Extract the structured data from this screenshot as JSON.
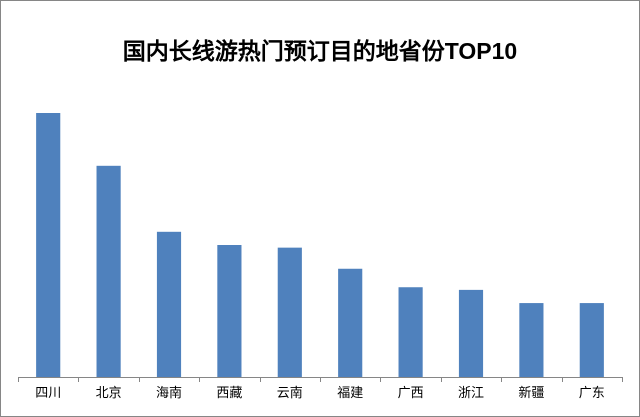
{
  "chart_data": {
    "type": "bar",
    "title": "国内长线游热门预订目的地省份TOP10",
    "xlabel": "",
    "ylabel": "",
    "categories": [
      "四川",
      "北京",
      "海南",
      "西藏",
      "云南",
      "福建",
      "广西",
      "浙江",
      "新疆",
      "广东"
    ],
    "values": [
      100,
      80,
      55,
      50,
      49,
      41,
      34,
      33,
      28,
      28
    ],
    "ylim": [
      0,
      100
    ],
    "grid": false,
    "legend": "none",
    "bar_color": "#4F81BD",
    "axis_color": "#868686"
  }
}
